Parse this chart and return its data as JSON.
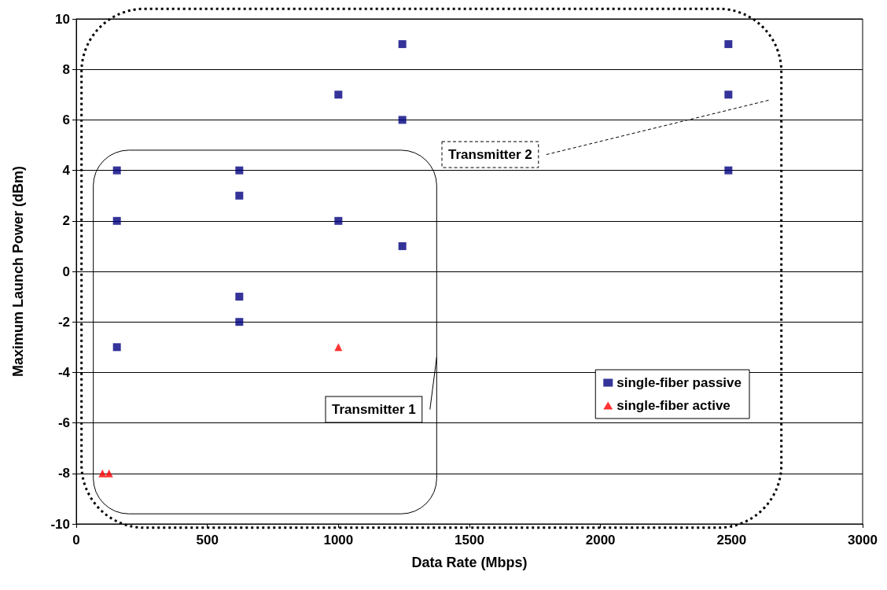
{
  "chart_data": {
    "type": "scatter",
    "xlabel": "Data Rate (Mbps)",
    "ylabel": "Maximum Launch Power (dBm)",
    "series": [
      {
        "name": "single-fiber passive",
        "color": "#000080",
        "marker": "square",
        "x": [
          155,
          155,
          155,
          622,
          622,
          622,
          622,
          1000,
          1000,
          1244,
          1244,
          1244,
          2488,
          2488,
          2488
        ],
        "values": [
          4,
          2,
          -3,
          4,
          3,
          -1,
          -2,
          7,
          2,
          9,
          6,
          1,
          9,
          7,
          4
        ]
      },
      {
        "name": "single-fiber active",
        "color": "#ff0000",
        "marker": "triangle",
        "x": [
          100,
          125,
          1000
        ],
        "values": [
          -8,
          -8,
          -3
        ]
      }
    ],
    "xlim": [
      0,
      3000
    ],
    "xticks": [
      0,
      500,
      1000,
      1500,
      2000,
      2500,
      3000
    ],
    "ylim": [
      -10,
      10
    ],
    "yticks": [
      -10,
      -8,
      -6,
      -4,
      -2,
      0,
      2,
      4,
      6,
      8,
      10
    ],
    "grid": "y",
    "legend": "right",
    "annotations": [
      "Transmitter 1",
      "Transmitter 2"
    ]
  }
}
